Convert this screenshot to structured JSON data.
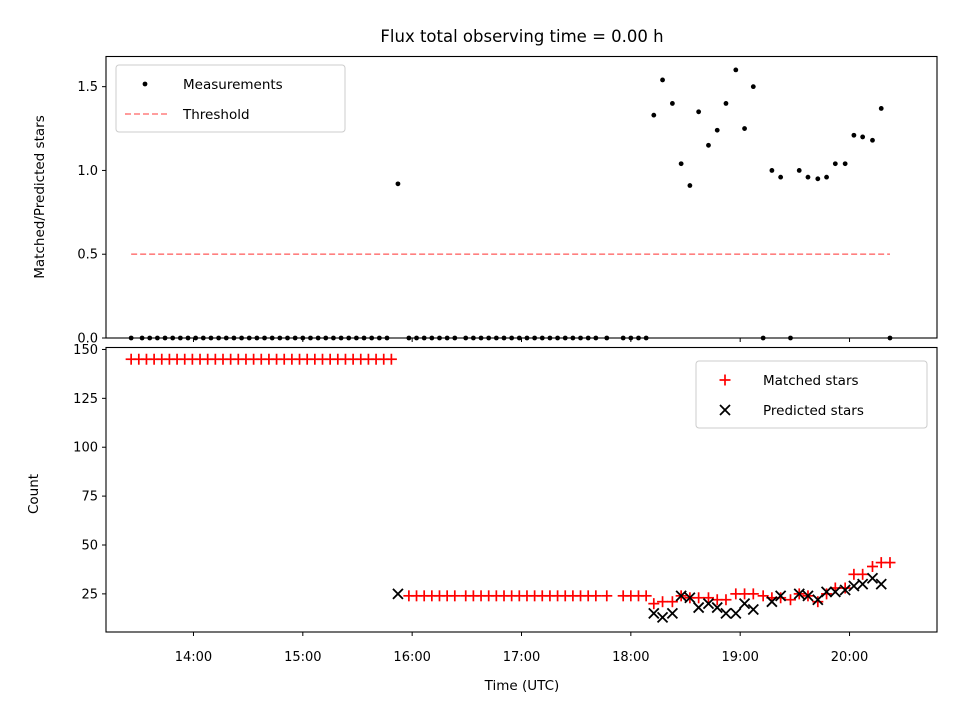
{
  "chart_data": [
    {
      "type": "scatter",
      "title": "Flux total observing time = 0.00 h",
      "xlabel": "",
      "ylabel": "Matched/Predicted stars",
      "xlim": [
        13.2,
        20.8
      ],
      "ylim": [
        0,
        1.68
      ],
      "yticks": [
        0.0,
        0.5,
        1.0,
        1.5
      ],
      "ytick_labels": [
        "0.0",
        "0.5",
        "1.0",
        "1.5"
      ],
      "legend_position": "upper left",
      "series": [
        {
          "name": "Measurements",
          "style": "dots",
          "color": "#000000",
          "points": [
            [
              13.43,
              0
            ],
            [
              13.53,
              0
            ],
            [
              13.6,
              0
            ],
            [
              13.67,
              0
            ],
            [
              13.74,
              0
            ],
            [
              13.81,
              0
            ],
            [
              13.88,
              0
            ],
            [
              13.95,
              0
            ],
            [
              14.02,
              0
            ],
            [
              14.09,
              0
            ],
            [
              14.16,
              0
            ],
            [
              14.23,
              0
            ],
            [
              14.3,
              0
            ],
            [
              14.37,
              0
            ],
            [
              14.44,
              0
            ],
            [
              14.51,
              0
            ],
            [
              14.58,
              0
            ],
            [
              14.65,
              0
            ],
            [
              14.72,
              0
            ],
            [
              14.79,
              0
            ],
            [
              14.86,
              0
            ],
            [
              14.93,
              0
            ],
            [
              15.0,
              0
            ],
            [
              15.07,
              0
            ],
            [
              15.14,
              0
            ],
            [
              15.21,
              0
            ],
            [
              15.28,
              0
            ],
            [
              15.35,
              0
            ],
            [
              15.42,
              0
            ],
            [
              15.49,
              0
            ],
            [
              15.56,
              0
            ],
            [
              15.63,
              0
            ],
            [
              15.7,
              0
            ],
            [
              15.77,
              0
            ],
            [
              15.87,
              0.92
            ],
            [
              15.97,
              0
            ],
            [
              16.04,
              0
            ],
            [
              16.11,
              0
            ],
            [
              16.18,
              0
            ],
            [
              16.25,
              0
            ],
            [
              16.32,
              0
            ],
            [
              16.39,
              0
            ],
            [
              16.49,
              0
            ],
            [
              16.56,
              0
            ],
            [
              16.63,
              0
            ],
            [
              16.7,
              0
            ],
            [
              16.77,
              0
            ],
            [
              16.84,
              0
            ],
            [
              16.91,
              0
            ],
            [
              16.98,
              0
            ],
            [
              17.05,
              0
            ],
            [
              17.12,
              0
            ],
            [
              17.19,
              0
            ],
            [
              17.26,
              0
            ],
            [
              17.33,
              0
            ],
            [
              17.4,
              0
            ],
            [
              17.47,
              0
            ],
            [
              17.54,
              0
            ],
            [
              17.61,
              0
            ],
            [
              17.68,
              0
            ],
            [
              17.78,
              0
            ],
            [
              17.93,
              0
            ],
            [
              18.0,
              0
            ],
            [
              18.07,
              0
            ],
            [
              18.14,
              0
            ],
            [
              18.21,
              1.33
            ],
            [
              18.29,
              1.54
            ],
            [
              18.38,
              1.4
            ],
            [
              18.46,
              1.04
            ],
            [
              18.54,
              0.91
            ],
            [
              18.62,
              1.35
            ],
            [
              18.71,
              1.15
            ],
            [
              18.79,
              1.24
            ],
            [
              18.87,
              1.4
            ],
            [
              18.96,
              1.6
            ],
            [
              19.04,
              1.25
            ],
            [
              19.12,
              1.5
            ],
            [
              19.21,
              0
            ],
            [
              19.29,
              1.0
            ],
            [
              19.37,
              0.96
            ],
            [
              19.46,
              0
            ],
            [
              19.54,
              1.0
            ],
            [
              19.62,
              0.96
            ],
            [
              19.71,
              0.95
            ],
            [
              19.79,
              0.96
            ],
            [
              19.87,
              1.04
            ],
            [
              19.96,
              1.04
            ],
            [
              20.04,
              1.21
            ],
            [
              20.12,
              1.2
            ],
            [
              20.21,
              1.18
            ],
            [
              20.29,
              1.37
            ],
            [
              20.37,
              0
            ]
          ]
        },
        {
          "name": "Threshold",
          "style": "dashed-line",
          "color": "#ff7f7f",
          "x": [
            13.43,
            20.37
          ],
          "y": [
            0.5,
            0.5
          ]
        }
      ]
    },
    {
      "type": "scatter",
      "title": "",
      "xlabel": "Time (UTC)",
      "ylabel": "Count",
      "xlim": [
        13.2,
        20.8
      ],
      "ylim": [
        5.5,
        151
      ],
      "xticks": [
        14,
        15,
        16,
        17,
        18,
        19,
        20
      ],
      "xtick_labels": [
        "14:00",
        "15:00",
        "16:00",
        "17:00",
        "18:00",
        "19:00",
        "20:00"
      ],
      "yticks": [
        25,
        50,
        75,
        100,
        125,
        150
      ],
      "ytick_labels": [
        "25",
        "50",
        "75",
        "100",
        "125",
        "150"
      ],
      "legend_position": "upper right",
      "series": [
        {
          "name": "Matched stars",
          "marker": "plus",
          "color": "#ff0000",
          "points": [
            [
              13.43,
              145
            ],
            [
              13.5,
              145
            ],
            [
              13.57,
              145
            ],
            [
              13.64,
              145
            ],
            [
              13.71,
              145
            ],
            [
              13.78,
              145
            ],
            [
              13.85,
              145
            ],
            [
              13.92,
              145
            ],
            [
              13.99,
              145
            ],
            [
              14.06,
              145
            ],
            [
              14.13,
              145
            ],
            [
              14.2,
              145
            ],
            [
              14.27,
              145
            ],
            [
              14.34,
              145
            ],
            [
              14.41,
              145
            ],
            [
              14.48,
              145
            ],
            [
              14.55,
              145
            ],
            [
              14.62,
              145
            ],
            [
              14.69,
              145
            ],
            [
              14.76,
              145
            ],
            [
              14.83,
              145
            ],
            [
              14.9,
              145
            ],
            [
              14.97,
              145
            ],
            [
              15.04,
              145
            ],
            [
              15.11,
              145
            ],
            [
              15.18,
              145
            ],
            [
              15.25,
              145
            ],
            [
              15.32,
              145
            ],
            [
              15.39,
              145
            ],
            [
              15.46,
              145
            ],
            [
              15.53,
              145
            ],
            [
              15.6,
              145
            ],
            [
              15.67,
              145
            ],
            [
              15.74,
              145
            ],
            [
              15.81,
              145
            ],
            [
              15.97,
              24
            ],
            [
              16.04,
              24
            ],
            [
              16.11,
              24
            ],
            [
              16.18,
              24
            ],
            [
              16.25,
              24
            ],
            [
              16.32,
              24
            ],
            [
              16.39,
              24
            ],
            [
              16.49,
              24
            ],
            [
              16.56,
              24
            ],
            [
              16.63,
              24
            ],
            [
              16.7,
              24
            ],
            [
              16.77,
              24
            ],
            [
              16.84,
              24
            ],
            [
              16.91,
              24
            ],
            [
              16.98,
              24
            ],
            [
              17.05,
              24
            ],
            [
              17.12,
              24
            ],
            [
              17.19,
              24
            ],
            [
              17.26,
              24
            ],
            [
              17.33,
              24
            ],
            [
              17.4,
              24
            ],
            [
              17.47,
              24
            ],
            [
              17.54,
              24
            ],
            [
              17.61,
              24
            ],
            [
              17.68,
              24
            ],
            [
              17.78,
              24
            ],
            [
              17.93,
              24
            ],
            [
              18.0,
              24
            ],
            [
              18.07,
              24
            ],
            [
              18.14,
              24
            ],
            [
              18.21,
              20
            ],
            [
              18.29,
              21
            ],
            [
              18.38,
              21
            ],
            [
              18.46,
              24
            ],
            [
              18.54,
              23
            ],
            [
              18.62,
              23
            ],
            [
              18.71,
              23
            ],
            [
              18.79,
              22
            ],
            [
              18.87,
              22
            ],
            [
              18.96,
              25
            ],
            [
              19.04,
              25
            ],
            [
              19.12,
              25
            ],
            [
              19.21,
              24
            ],
            [
              19.29,
              23
            ],
            [
              19.37,
              23
            ],
            [
              19.46,
              22
            ],
            [
              19.54,
              25
            ],
            [
              19.62,
              24
            ],
            [
              19.71,
              21
            ],
            [
              19.79,
              25
            ],
            [
              19.87,
              28
            ],
            [
              19.96,
              28
            ],
            [
              20.04,
              35
            ],
            [
              20.12,
              35
            ],
            [
              20.21,
              39
            ],
            [
              20.29,
              41
            ],
            [
              20.37,
              41
            ]
          ]
        },
        {
          "name": "Predicted stars",
          "marker": "x",
          "color": "#000000",
          "points": [
            [
              15.87,
              25
            ],
            [
              18.21,
              15
            ],
            [
              18.29,
              13
            ],
            [
              18.38,
              15
            ],
            [
              18.46,
              24
            ],
            [
              18.54,
              23
            ],
            [
              18.62,
              18
            ],
            [
              18.71,
              20
            ],
            [
              18.79,
              18
            ],
            [
              18.87,
              15
            ],
            [
              18.96,
              15
            ],
            [
              19.04,
              20
            ],
            [
              19.12,
              17
            ],
            [
              19.29,
              21
            ],
            [
              19.37,
              24
            ],
            [
              19.54,
              25
            ],
            [
              19.62,
              24
            ],
            [
              19.71,
              22
            ],
            [
              19.79,
              26
            ],
            [
              19.87,
              26
            ],
            [
              19.96,
              27
            ],
            [
              20.04,
              29
            ],
            [
              20.12,
              30
            ],
            [
              20.21,
              33
            ],
            [
              20.29,
              30
            ]
          ]
        }
      ]
    }
  ]
}
